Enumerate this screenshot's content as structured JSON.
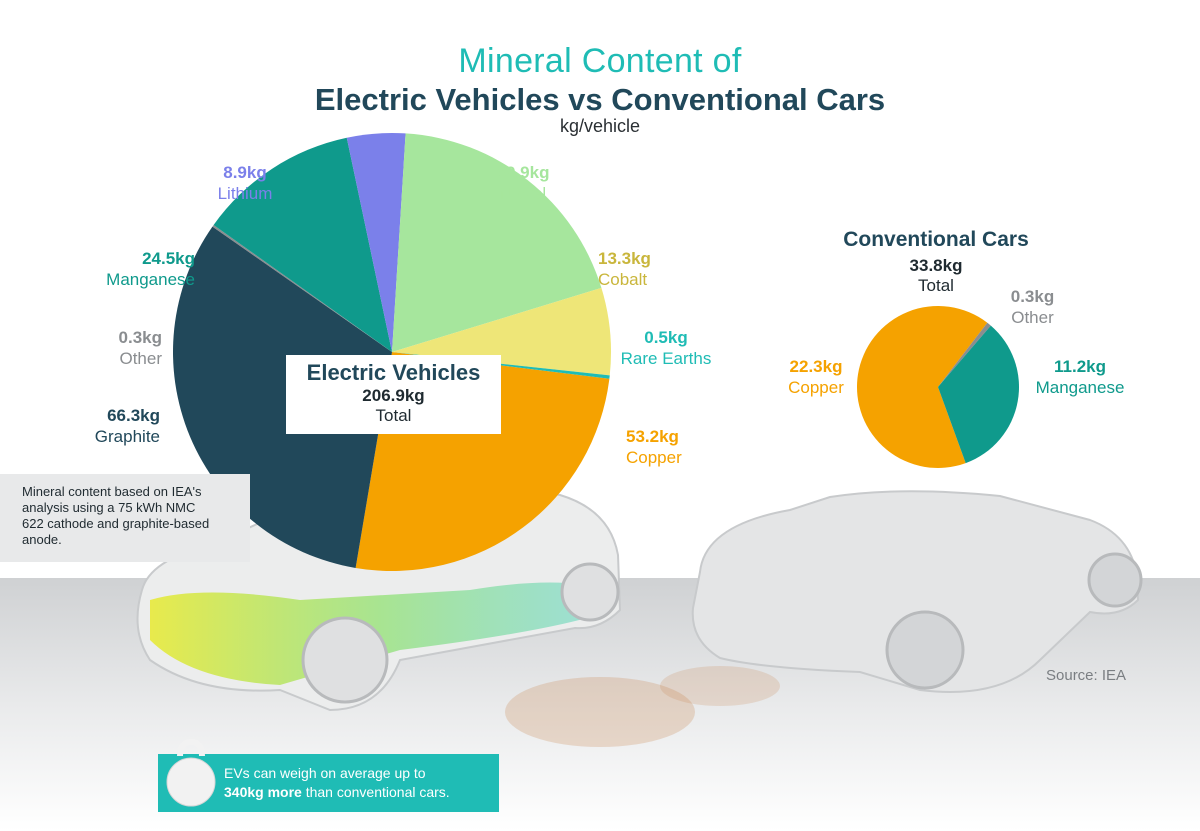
{
  "header": {
    "supertitle": "Mineral Content of",
    "title": "Electric Vehicles vs Conventional Cars",
    "unit": "kg/vehicle"
  },
  "chart_data": [
    {
      "type": "pie",
      "title": "Electric Vehicles",
      "total_value": "206.9kg",
      "total_label": "Total",
      "slices": [
        {
          "name": "Copper",
          "value": 53.2,
          "label": "53.2kg",
          "color": "#f5a200"
        },
        {
          "name": "Graphite",
          "value": 66.3,
          "label": "66.3kg",
          "color": "#21485a"
        },
        {
          "name": "Other",
          "value": 0.3,
          "label": "0.3kg",
          "color": "#8a8d90"
        },
        {
          "name": "Manganese",
          "value": 24.5,
          "label": "24.5kg",
          "color": "#0f9a8c"
        },
        {
          "name": "Lithium",
          "value": 8.9,
          "label": "8.9kg",
          "color": "#7b80ea"
        },
        {
          "name": "Nickel",
          "value": 39.9,
          "label": "39.9kg",
          "color": "#a6e69d"
        },
        {
          "name": "Cobalt",
          "value": 13.3,
          "label": "13.3kg",
          "color": "#eee678"
        },
        {
          "name": "Rare Earths",
          "value": 0.5,
          "label": "0.5kg",
          "color": "#1fbcb5"
        }
      ]
    },
    {
      "type": "pie",
      "title": "Conventional Cars",
      "total_value": "33.8kg",
      "total_label": "Total",
      "slices": [
        {
          "name": "Copper",
          "value": 22.3,
          "label": "22.3kg",
          "color": "#f5a200"
        },
        {
          "name": "Other",
          "value": 0.3,
          "label": "0.3kg",
          "color": "#8a8d90"
        },
        {
          "name": "Manganese",
          "value": 11.2,
          "label": "11.2kg",
          "color": "#0f9a8c"
        }
      ]
    }
  ],
  "label_colors": {
    "Lithium": "#7b80ea",
    "Nickel": "#a6e69d",
    "Cobalt": "#c9b63c",
    "Rare Earths": "#1fbcb5",
    "Copper": "#f5a200",
    "Manganese": "#0f9a8c",
    "Other": "#8a8d90",
    "Graphite": "#21485a"
  },
  "note": "Mineral content based on IEA's analysis using a 75 kWh NMC 622 cathode and graphite-based anode.",
  "source": "Source: IEA",
  "banner": {
    "line1": "EVs can weigh on average up to",
    "bold": "340kg more",
    "rest": "than conventional cars.",
    "icon": "kettlebell-icon"
  }
}
